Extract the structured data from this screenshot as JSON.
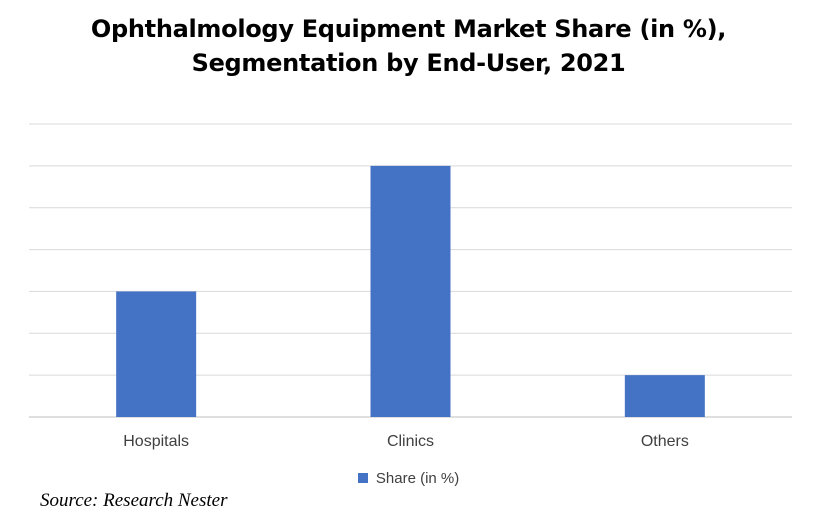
{
  "chart_data": {
    "type": "bar",
    "title_line1": "Ophthalmology Equipment Market Share (in %),",
    "title_line2": "Segmentation by End-User, 2021",
    "categories": [
      "Hospitals",
      "Clinics",
      "Others"
    ],
    "series": [
      {
        "name": "Share (in %)",
        "values": [
          30,
          60,
          10
        ],
        "color": "#4472C4"
      }
    ],
    "ylim": [
      0,
      70
    ],
    "gridlines": true,
    "legend_position": "bottom"
  },
  "source": "Source: Research Nester",
  "colors": {
    "bar": "#4472C4",
    "grid": "#d9d9d9",
    "axis": "#bfbfbf"
  }
}
